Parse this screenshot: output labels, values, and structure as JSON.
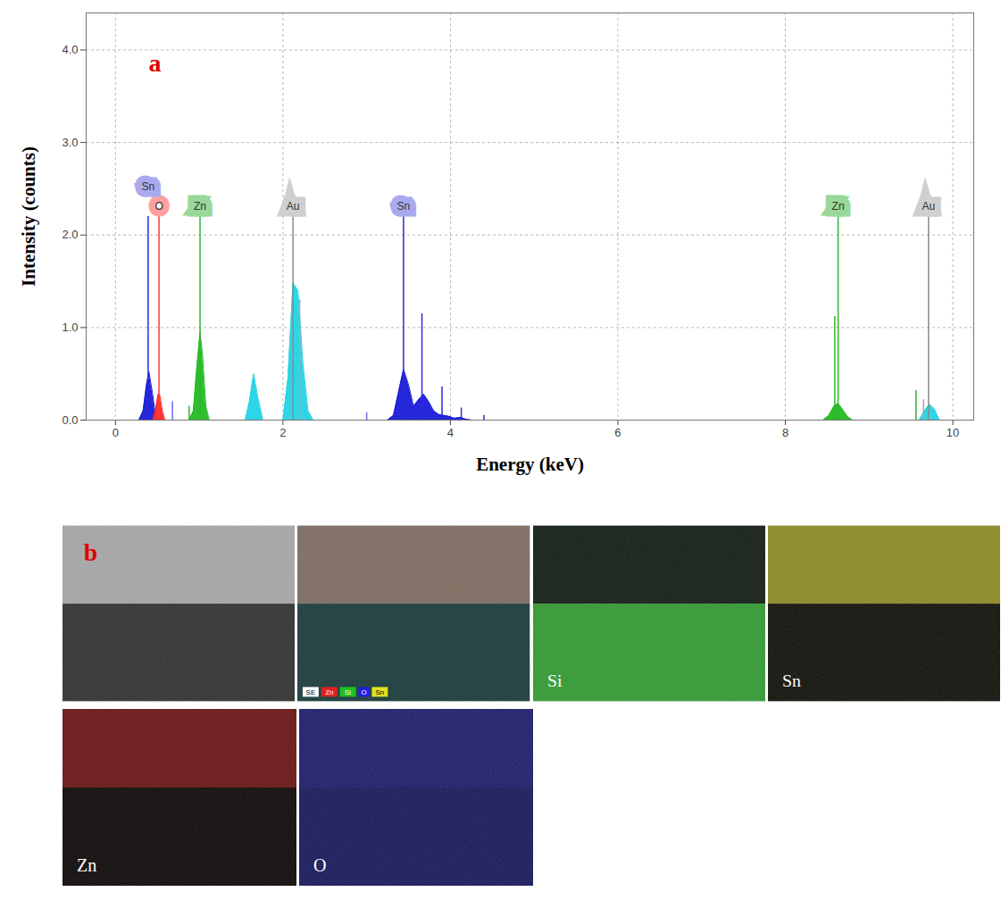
{
  "chart_data": {
    "type": "area",
    "panel_label": "a",
    "xlabel": "Energy (keV)",
    "ylabel": "Intensity (counts)",
    "xlim": [
      -0.35,
      10.25
    ],
    "xticks": [
      0,
      2,
      4,
      6,
      8,
      10
    ],
    "ylim": [
      0,
      4.4
    ],
    "yticks": [
      {
        "value": 0,
        "label": "0.0"
      },
      {
        "value": 1,
        "label": "1.0"
      },
      {
        "value": 2,
        "label": "2.0"
      },
      {
        "value": 3,
        "label": "3.0"
      },
      {
        "value": 4,
        "label": "4.0"
      }
    ],
    "grid": true,
    "series": [
      {
        "color": "#1a1ad8",
        "x": [
          0.28,
          0.33,
          0.37,
          0.4,
          0.44,
          0.48,
          0.5,
          3.25,
          3.32,
          3.38,
          3.44,
          3.5,
          3.56,
          3.62,
          3.68,
          3.74,
          3.8,
          3.86,
          3.92,
          3.98,
          4.05,
          4.12,
          4.18,
          4.25
        ],
        "values": [
          0,
          0.1,
          0.38,
          0.52,
          0.3,
          0.05,
          null,
          0,
          0.05,
          0.3,
          0.55,
          0.38,
          0.15,
          0.22,
          0.28,
          0.2,
          0.1,
          0.06,
          0.05,
          0.04,
          0.02,
          0.03,
          0.01,
          0
        ]
      },
      {
        "color": "#ff2a2a",
        "x": [
          0.45,
          0.48,
          0.51,
          0.53,
          0.56,
          0.59
        ],
        "values": [
          0,
          0.12,
          0.28,
          0.27,
          0.1,
          0
        ]
      },
      {
        "color": "#22bb22",
        "x": [
          0.88,
          0.93,
          0.97,
          1.01,
          1.04,
          1.08,
          1.12,
          1.5,
          8.45,
          8.52,
          8.58,
          8.63,
          8.68,
          8.74,
          8.8
        ],
        "values": [
          0,
          0.1,
          0.55,
          0.95,
          0.7,
          0.15,
          0,
          null,
          0,
          0.05,
          0.15,
          0.18,
          0.12,
          0.04,
          0
        ]
      },
      {
        "color": "#22d3e6",
        "x": [
          1.55,
          1.6,
          1.65,
          1.7,
          1.76,
          1.9,
          2.0,
          2.06,
          2.12,
          2.18,
          2.24,
          2.3,
          2.36,
          5.0,
          9.6,
          9.66,
          9.72,
          9.78,
          9.84
        ],
        "values": [
          0,
          0.2,
          0.5,
          0.25,
          0,
          null,
          0,
          0.45,
          1.48,
          1.4,
          0.6,
          0.1,
          0,
          null,
          0,
          0.1,
          0.17,
          0.12,
          0
        ]
      }
    ],
    "element_lines": [
      {
        "label": "Sn",
        "x": 0.39,
        "value": 2.2,
        "color": "#2b2bdc",
        "box_color": "#a9a9ee"
      },
      {
        "label": "O",
        "x": 0.52,
        "value": 2.2,
        "color": "#ff3b3b",
        "box_color": "#ffa0a0"
      },
      {
        "label": "Zn",
        "x": 1.01,
        "value": 2.2,
        "color": "#2fb52f",
        "box_color": "#98d898"
      },
      {
        "label": "Au",
        "x": 2.12,
        "value": 2.2,
        "color": "#8a8a8a",
        "box_color": "#cfcfcf"
      },
      {
        "label": "Sn",
        "x": 3.44,
        "value": 2.2,
        "color": "#2b2bdc",
        "box_color": "#a9a9ee"
      },
      {
        "label": "Zn",
        "x": 8.63,
        "value": 2.2,
        "color": "#2fb52f",
        "box_color": "#98d898"
      },
      {
        "label": "Au",
        "x": 9.71,
        "value": 2.2,
        "color": "#8a8a8a",
        "box_color": "#cfcfcf"
      }
    ],
    "lines": [
      {
        "x": 0.68,
        "value": 0.2,
        "color": "#6b6bf0"
      },
      {
        "x": 0.88,
        "value": 0.15,
        "color": "#2fb52f"
      },
      {
        "x": 2.2,
        "value": 1.3,
        "color": "#a8a8a8"
      },
      {
        "x": 3.0,
        "value": 0.08,
        "color": "#6b6bf0"
      },
      {
        "x": 3.66,
        "value": 1.15,
        "color": "#2b2bdc"
      },
      {
        "x": 3.9,
        "value": 0.36,
        "color": "#2b2bdc"
      },
      {
        "x": 4.13,
        "value": 0.13,
        "color": "#2b2bdc"
      },
      {
        "x": 4.4,
        "value": 0.05,
        "color": "#2b2bdc"
      },
      {
        "x": 8.59,
        "value": 1.12,
        "color": "#2fb52f"
      },
      {
        "x": 9.56,
        "value": 0.32,
        "color": "#2fb52f"
      },
      {
        "x": 9.65,
        "value": 0.22,
        "color": "#a8a8a8"
      }
    ]
  },
  "panel_b": {
    "panel_label": "b",
    "rows": [
      [
        {
          "colors": [
            "#a6a6a6",
            "#2e2e2e"
          ]
        },
        {
          "colors": [
            "#7d6b5e",
            "#163838"
          ],
          "legend": [
            {
              "label": "SE",
              "color": "#ffffff"
            },
            {
              "label": "Zn",
              "color": "#e02020"
            },
            {
              "label": "Si",
              "color": "#20c020"
            },
            {
              "label": "O",
              "color": "#2020e0"
            },
            {
              "label": "Sn",
              "color": "#e0e020"
            }
          ]
        },
        {
          "label": "Si",
          "colors": [
            "#0f1a0f",
            "#2f9a2f"
          ]
        },
        {
          "label": "Sn",
          "colors": [
            "#8c8a22",
            "#0d0d06"
          ]
        }
      ],
      [
        {
          "label": "Zn",
          "colors": [
            "#6a1010",
            "#0a0505"
          ]
        },
        {
          "label": "O",
          "colors": [
            "#1a1a6a",
            "#15155a"
          ]
        }
      ]
    ]
  }
}
